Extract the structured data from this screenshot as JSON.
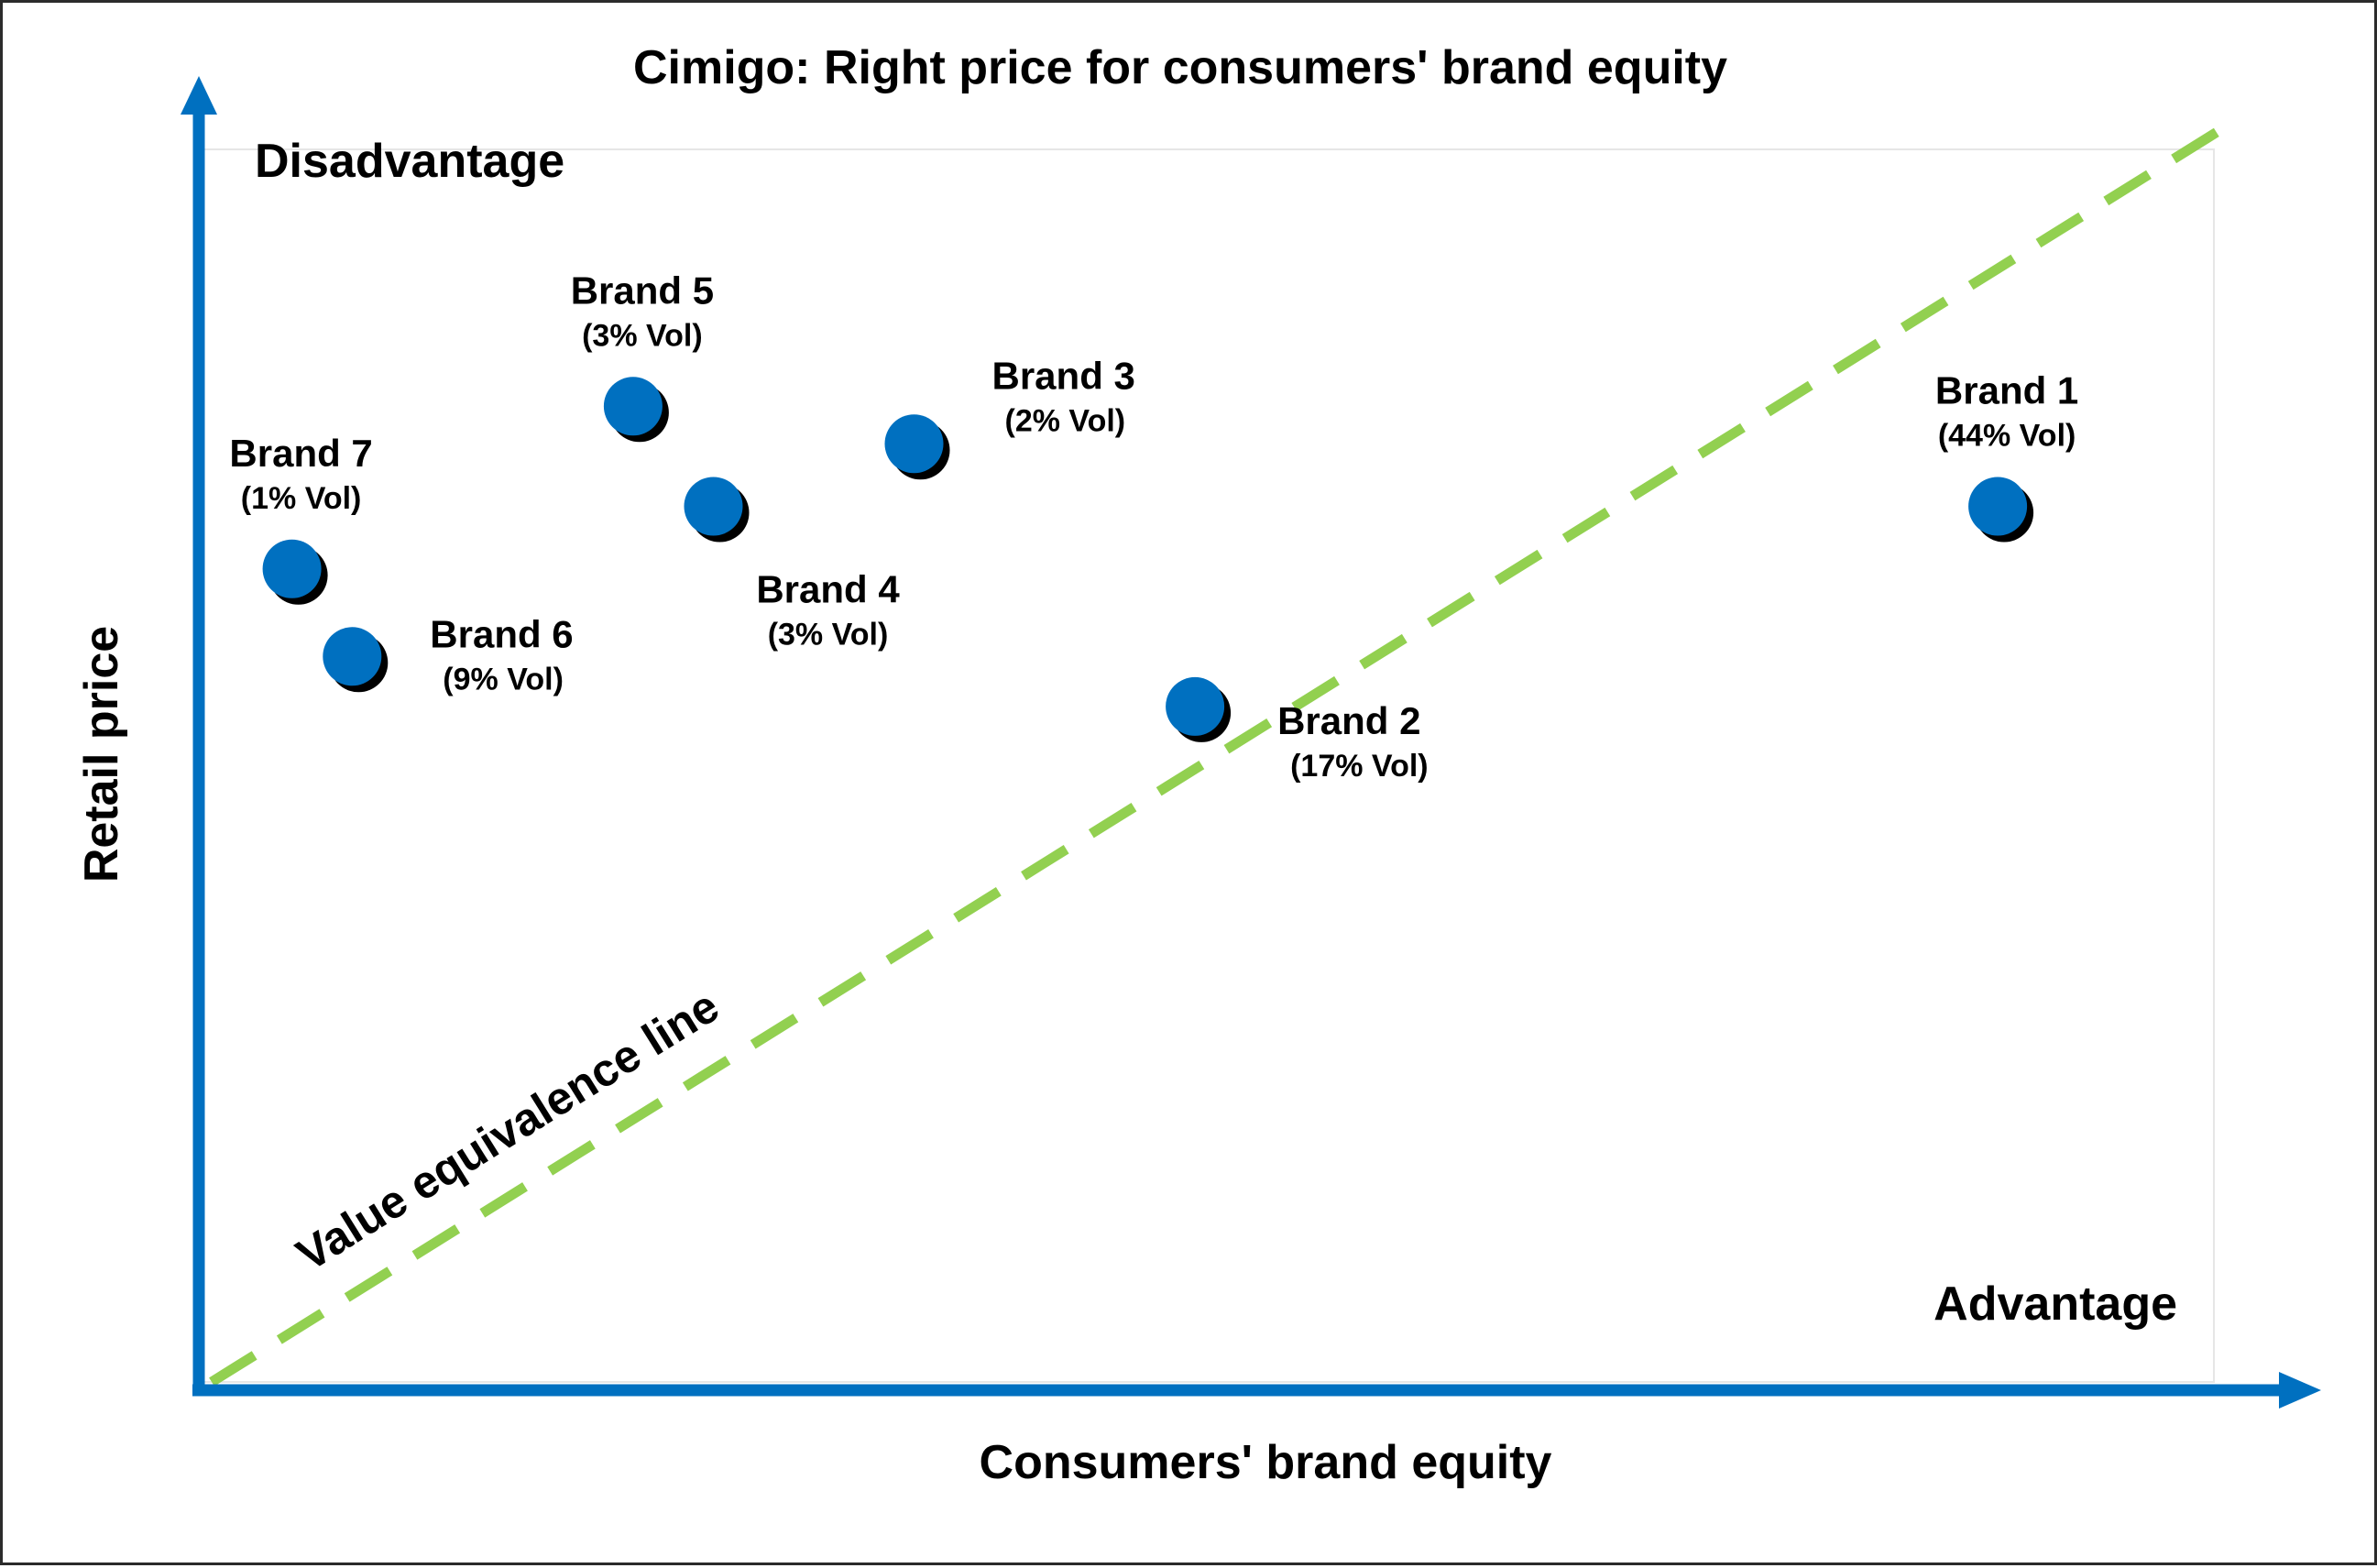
{
  "chart_data": {
    "type": "scatter",
    "title": "Cimigo: Right price for consumers' brand equity",
    "xlabel": "Consumers' brand equity",
    "ylabel": "Retail price",
    "quadrant_labels": {
      "top_left": "Disadvantage",
      "bottom_right": "Advantage"
    },
    "reference_line": {
      "label": "Value equivalence line",
      "x": [
        0,
        1
      ],
      "y": [
        0,
        1
      ],
      "color": "#92D050"
    },
    "xlim": [
      0,
      1
    ],
    "ylim": [
      0,
      1
    ],
    "grid": false,
    "legend": "none",
    "point_color": "#0070C0",
    "axis_color": "#0070C0",
    "points": [
      {
        "name": "Brand 1",
        "volume": "(44% Vol)",
        "x": 0.89,
        "y": 0.7,
        "label_pos": "above"
      },
      {
        "name": "Brand 2",
        "volume": "(17% Vol)",
        "x": 0.49,
        "y": 0.54,
        "label_pos": "right"
      },
      {
        "name": "Brand 3",
        "volume": "(2% Vol)",
        "x": 0.35,
        "y": 0.75,
        "label_pos": "right"
      },
      {
        "name": "Brand 4",
        "volume": "(3% Vol)",
        "x": 0.25,
        "y": 0.7,
        "label_pos": "below"
      },
      {
        "name": "Brand 5",
        "volume": "(3% Vol)",
        "x": 0.21,
        "y": 0.78,
        "label_pos": "above"
      },
      {
        "name": "Brand 6",
        "volume": "(9% Vol)",
        "x": 0.07,
        "y": 0.58,
        "label_pos": "right"
      },
      {
        "name": "Brand 7",
        "volume": "(1% Vol)",
        "x": 0.04,
        "y": 0.65,
        "label_pos": "above"
      }
    ]
  }
}
